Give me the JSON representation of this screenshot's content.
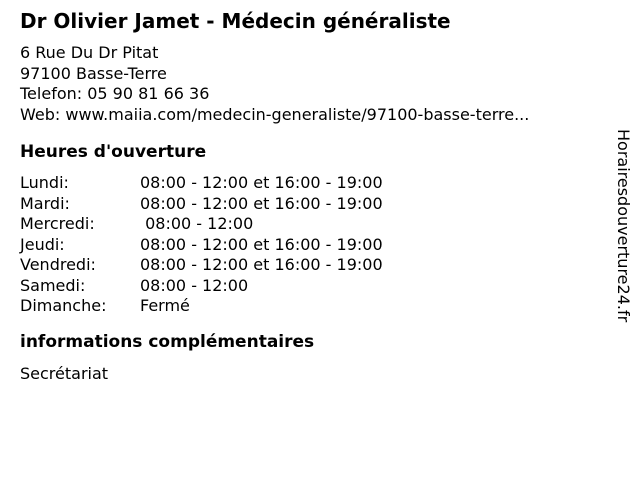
{
  "header": {
    "title": "Dr Olivier Jamet - Médecin généraliste",
    "address_line1": "6 Rue Du Dr Pitat",
    "address_line2": "97100 Basse-Terre",
    "phone_line": "Telefon: 05 90 81 66 36",
    "web_line": "Web: www.maiia.com/medecin-generaliste/97100-basse-terre..."
  },
  "hours": {
    "heading": "Heures d'ouverture",
    "rows": [
      {
        "day": "Lundi:",
        "time": "08:00 - 12:00 et 16:00 - 19:00"
      },
      {
        "day": "Mardi:",
        "time": "08:00 - 12:00 et 16:00 - 19:00"
      },
      {
        "day": "Mercredi:",
        "time": " 08:00 - 12:00"
      },
      {
        "day": "Jeudi:",
        "time": "08:00 - 12:00 et 16:00 - 19:00"
      },
      {
        "day": "Vendredi:",
        "time": "08:00 - 12:00 et 16:00 - 19:00"
      },
      {
        "day": "Samedi:",
        "time": "08:00 - 12:00"
      },
      {
        "day": "Dimanche:",
        "time": "Fermé"
      }
    ]
  },
  "extra": {
    "heading": "informations complémentaires",
    "text": "Secrétariat"
  },
  "watermark": "Horairesdouverture24.fr",
  "colors": {
    "background": "#ffffff",
    "text": "#000000"
  }
}
